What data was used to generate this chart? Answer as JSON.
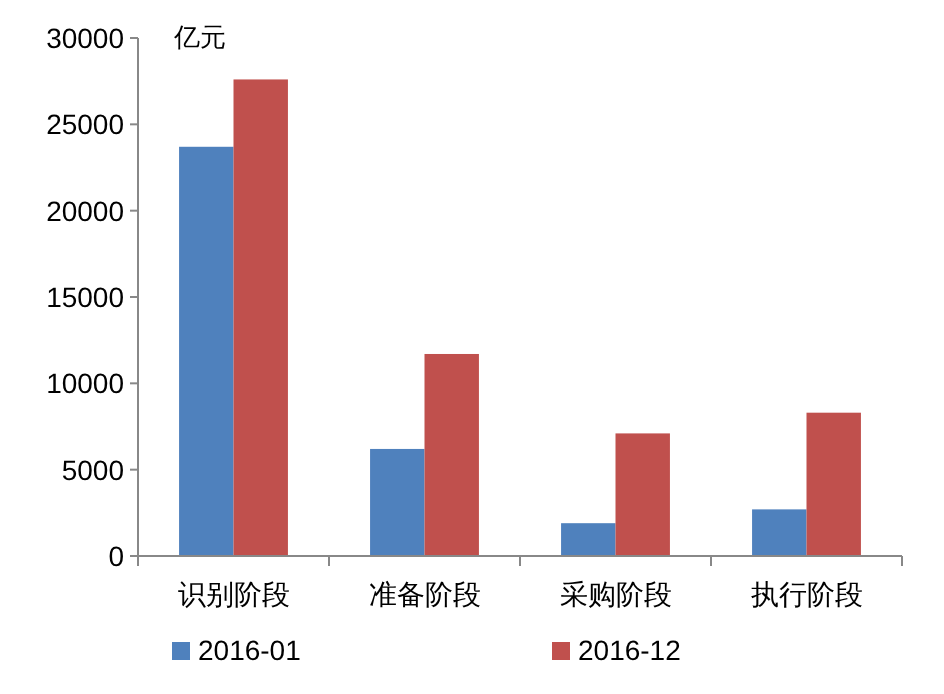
{
  "chart_data": {
    "type": "bar",
    "ylabel": "亿元",
    "categories": [
      "识别阶段",
      "准备阶段",
      "采购阶段",
      "执行阶段"
    ],
    "series": [
      {
        "name": "2016-01",
        "color": "#4f81bd",
        "values": [
          23700,
          6200,
          1900,
          2700
        ]
      },
      {
        "name": "2016-12",
        "color": "#c0504d",
        "values": [
          27600,
          11700,
          7100,
          8300
        ]
      }
    ],
    "ylim": [
      0,
      30000
    ],
    "yticks": [
      0,
      5000,
      10000,
      15000,
      20000,
      25000,
      30000
    ],
    "grid": false,
    "legend": "bottom"
  }
}
